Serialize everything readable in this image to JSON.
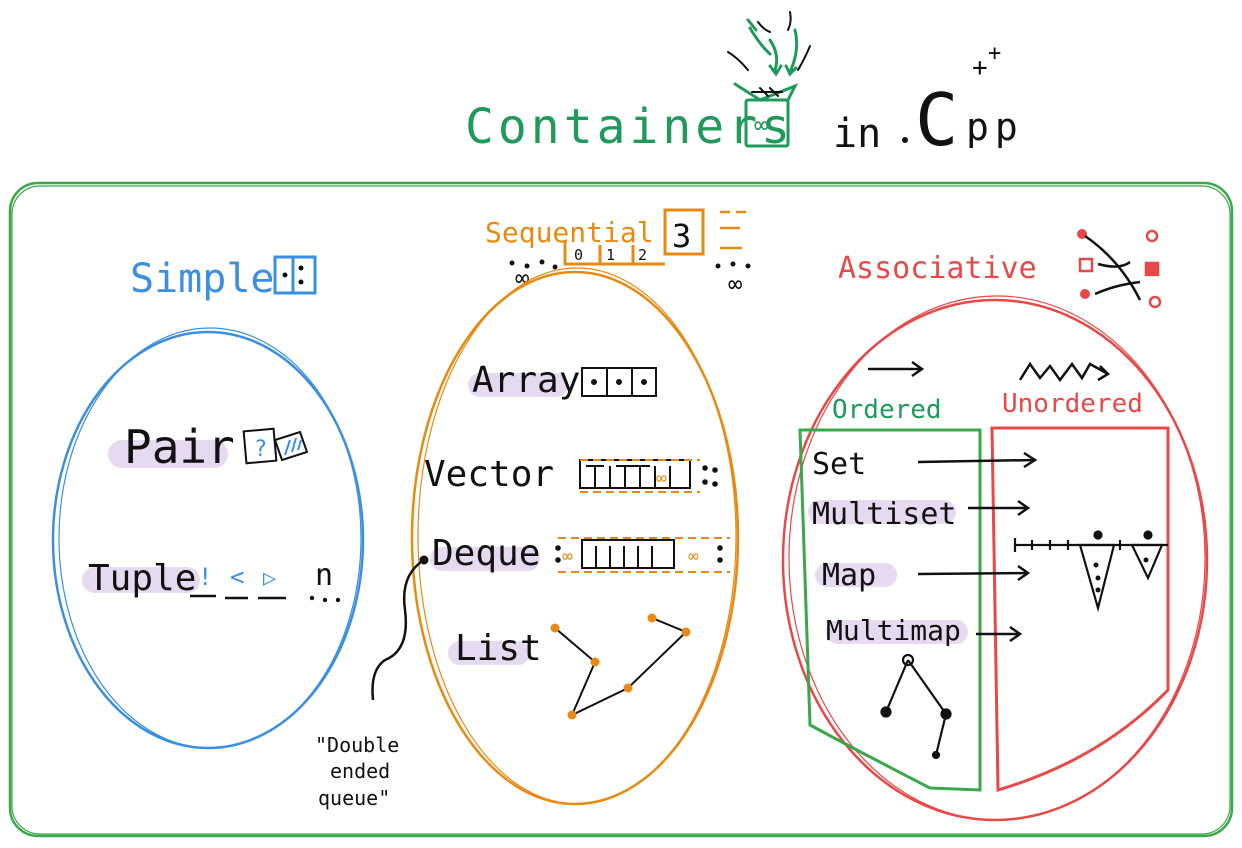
{
  "title": {
    "main": "Containers",
    "in": "in",
    "lang_c": "C",
    "lang_pp": "pp",
    "plus": "+",
    "box_glyph": "∞"
  },
  "simple": {
    "heading": "Simple",
    "pair": "Pair",
    "pair_glyph": "?",
    "tuple": "Tuple",
    "tuple_slots": [
      "!",
      "<",
      "▷"
    ],
    "tuple_n": "n"
  },
  "sequential": {
    "heading": "Sequential",
    "index_cells": [
      "0",
      "1",
      "2"
    ],
    "index_last": "3",
    "infinity": "∞",
    "items": {
      "array": "Array",
      "vector": "Vector",
      "deque": "Deque",
      "list": "List"
    },
    "deque_note": "\"Double ended queue\"",
    "deque_note_lines": [
      "\"Double",
      "ended",
      "queue\""
    ]
  },
  "associative": {
    "heading": "Associative",
    "ordered": "Ordered",
    "unordered": "Unordered",
    "items": [
      "Set",
      "Multiset",
      "Map",
      "Multimap"
    ]
  },
  "colors": {
    "green": "#1f9a5a",
    "frame_green": "#3aa84a",
    "blue": "#3a8fe0",
    "orange": "#e88a12",
    "red": "#e84848",
    "highlight": "#e6daf0",
    "ink": "#111111"
  },
  "icons": [
    "seed-box-icon",
    "split-box-icon",
    "book-icon",
    "array-cells-icon",
    "tree-icon",
    "linked-list-icon",
    "hash-buckets-icon",
    "arrow-icon"
  ]
}
